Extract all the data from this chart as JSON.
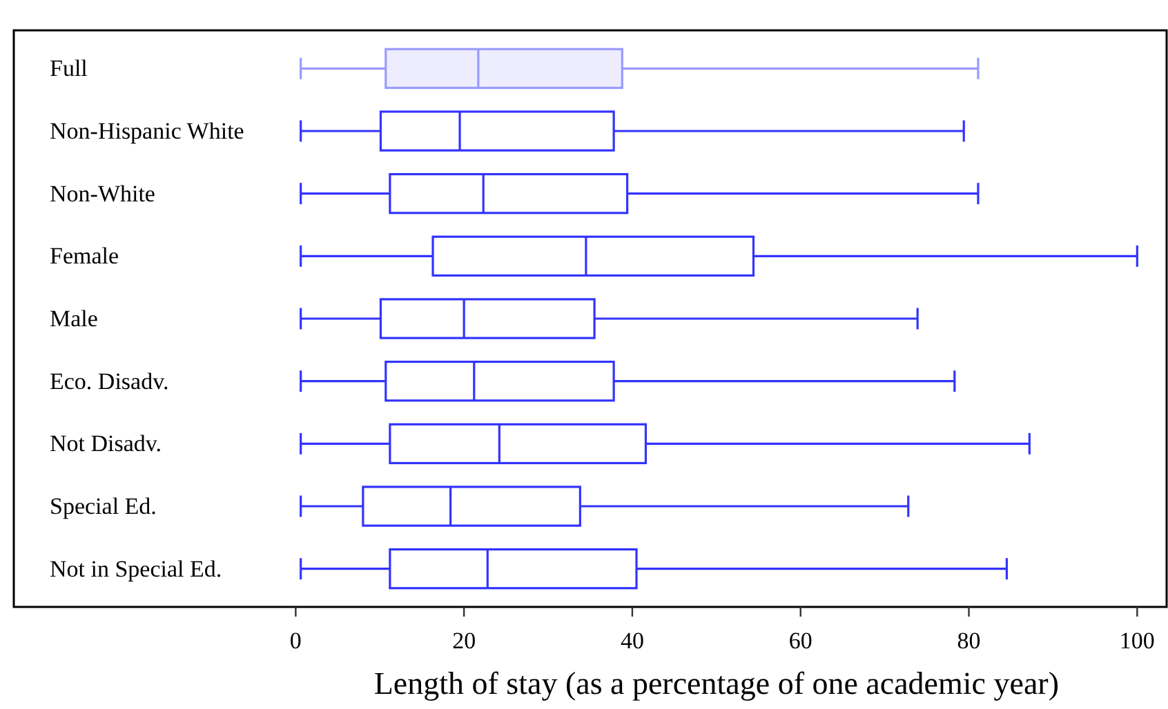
{
  "chart_data": {
    "type": "box",
    "orientation": "horizontal",
    "xlabel": "Length of stay (as a percentage of one academic year)",
    "categories": [
      "Full",
      "Non-Hispanic White",
      "Non-White",
      "Female",
      "Male",
      "Eco. Disadv.",
      "Not Disadv.",
      "Special Ed.",
      "Not in Special Ed."
    ],
    "xlim": [
      -33.5,
      103.5
    ],
    "xticks": [
      0,
      20,
      40,
      60,
      80,
      100
    ],
    "grid": false,
    "series": [
      {
        "color": "#9a9aff",
        "boxes": [
          {
            "low": 0.6,
            "q1": 10.7,
            "median": 21.7,
            "q3": 38.8,
            "high": 81.1
          },
          null,
          null,
          null,
          null,
          null,
          null,
          null,
          null
        ]
      },
      {
        "color": "#3333ff",
        "boxes": [
          null,
          {
            "low": 0.6,
            "q1": 10.1,
            "median": 19.5,
            "q3": 37.8,
            "high": 79.4
          },
          {
            "low": 0.6,
            "q1": 11.2,
            "median": 22.3,
            "q3": 39.4,
            "high": 81.1
          },
          {
            "low": 0.6,
            "q1": 16.3,
            "median": 34.5,
            "q3": 54.4,
            "high": 100
          },
          {
            "low": 0.6,
            "q1": 10.1,
            "median": 20.0,
            "q3": 35.5,
            "high": 73.9
          },
          {
            "low": 0.6,
            "q1": 10.7,
            "median": 21.2,
            "q3": 37.8,
            "high": 78.3
          },
          {
            "low": 0.6,
            "q1": 11.2,
            "median": 24.2,
            "q3": 41.6,
            "high": 87.2
          },
          {
            "low": 0.6,
            "q1": 8.0,
            "median": 18.4,
            "q3": 33.8,
            "high": 72.8
          },
          {
            "low": 0.6,
            "q1": 11.2,
            "median": 22.8,
            "q3": 40.5,
            "high": 84.5
          }
        ]
      }
    ]
  }
}
